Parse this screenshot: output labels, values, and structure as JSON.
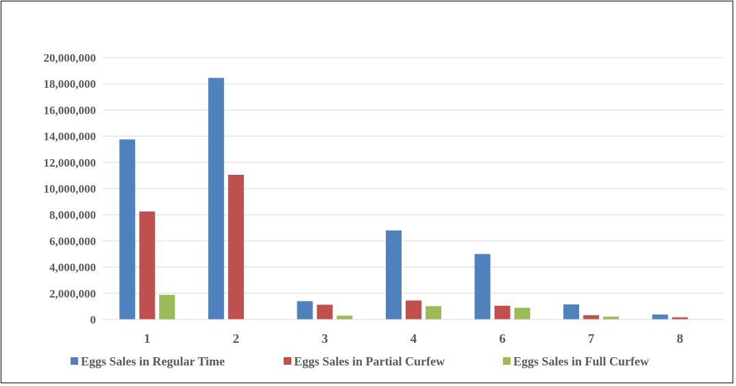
{
  "chart_data": {
    "type": "bar",
    "title": "",
    "xlabel": "",
    "ylabel": "",
    "categories": [
      "1",
      "2",
      "3",
      "4",
      "6",
      "7",
      "8"
    ],
    "ylim": [
      0,
      20000000
    ],
    "yticks": [
      0,
      2000000,
      4000000,
      6000000,
      8000000,
      10000000,
      12000000,
      14000000,
      16000000,
      18000000,
      20000000
    ],
    "ytick_labels": [
      "0",
      "2,000,000",
      "4,000,000",
      "6,000,000",
      "8,000,000",
      "10,000,000",
      "12,000,000",
      "14,000,000",
      "16,000,000",
      "18,000,000",
      "20,000,000"
    ],
    "grid": true,
    "legend_position": "bottom",
    "series": [
      {
        "name": "Eggs Sales in Regular Time",
        "color": "#4f81bd",
        "values": [
          13750000,
          18450000,
          1400000,
          6800000,
          5000000,
          1150000,
          380000
        ]
      },
      {
        "name": "Eggs Sales in Partial Curfew",
        "color": "#c0504d",
        "values": [
          8250000,
          11050000,
          1130000,
          1450000,
          1050000,
          330000,
          170000
        ]
      },
      {
        "name": "Eggs Sales in Full Curfew",
        "color": "#9bbb59",
        "values": [
          1880000,
          0,
          290000,
          1020000,
          900000,
          220000,
          0
        ]
      }
    ]
  }
}
